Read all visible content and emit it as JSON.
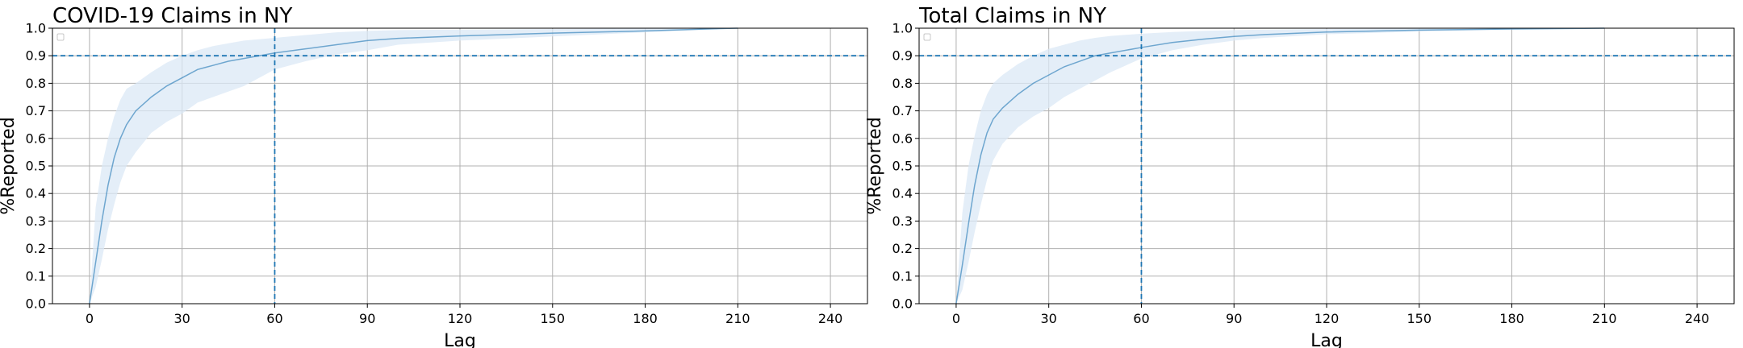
{
  "chart_data": [
    {
      "type": "line",
      "title": "COVID-19 Claims in NY",
      "xlabel": "Lag",
      "ylabel": "%Reported",
      "xlim": [
        -12,
        252
      ],
      "ylim": [
        0,
        1.0
      ],
      "xticks": [
        0,
        30,
        60,
        90,
        120,
        150,
        180,
        210,
        240
      ],
      "yticks": [
        0.0,
        0.1,
        0.2,
        0.3,
        0.4,
        0.5,
        0.6,
        0.7,
        0.8,
        0.9,
        1.0
      ],
      "xtick_labels": [
        "0",
        "30",
        "60",
        "90",
        "120",
        "150",
        "180",
        "210",
        "240"
      ],
      "ytick_labels": [
        "0.0",
        "0.1",
        "0.2",
        "0.3",
        "0.4",
        "0.5",
        "0.6",
        "0.7",
        "0.8",
        "0.9",
        "1.0"
      ],
      "grid": true,
      "legend": "upper-left (empty)",
      "colors": {
        "line": "#1f77b4",
        "band": "#dbe8f5",
        "ref": "#1f77b4",
        "grid": "#b0b0b0"
      },
      "ref_lines": {
        "h": 0.9,
        "v": 60
      },
      "series": [
        {
          "x": [
            0,
            2,
            4,
            6,
            8,
            10,
            12,
            15,
            20,
            25,
            30,
            35,
            40,
            45,
            50,
            60,
            70,
            80,
            90,
            100,
            120,
            150,
            180,
            200,
            210
          ],
          "values": [
            0.0,
            0.15,
            0.3,
            0.43,
            0.53,
            0.6,
            0.65,
            0.7,
            0.75,
            0.79,
            0.82,
            0.85,
            0.865,
            0.88,
            0.89,
            0.91,
            0.925,
            0.94,
            0.955,
            0.963,
            0.972,
            0.982,
            0.99,
            0.997,
            1.0
          ],
          "lower": [
            0.0,
            0.06,
            0.16,
            0.27,
            0.36,
            0.44,
            0.5,
            0.55,
            0.62,
            0.66,
            0.69,
            0.73,
            0.75,
            0.77,
            0.79,
            0.85,
            0.88,
            0.905,
            0.92,
            0.94,
            0.955,
            0.97,
            0.985,
            0.995,
            1.0
          ],
          "upper": [
            0.0,
            0.35,
            0.5,
            0.6,
            0.68,
            0.74,
            0.78,
            0.8,
            0.84,
            0.875,
            0.9,
            0.92,
            0.935,
            0.945,
            0.955,
            0.965,
            0.975,
            0.985,
            0.99,
            0.993,
            0.995,
            0.997,
            0.999,
            1.0,
            1.0
          ]
        }
      ]
    },
    {
      "type": "line",
      "title": "Total Claims in NY",
      "xlabel": "Lag",
      "ylabel": "%Reported",
      "xlim": [
        -12,
        252
      ],
      "ylim": [
        0,
        1.0
      ],
      "xticks": [
        0,
        30,
        60,
        90,
        120,
        150,
        180,
        210,
        240
      ],
      "yticks": [
        0.0,
        0.1,
        0.2,
        0.3,
        0.4,
        0.5,
        0.6,
        0.7,
        0.8,
        0.9,
        1.0
      ],
      "xtick_labels": [
        "0",
        "30",
        "60",
        "90",
        "120",
        "150",
        "180",
        "210",
        "240"
      ],
      "ytick_labels": [
        "0.0",
        "0.1",
        "0.2",
        "0.3",
        "0.4",
        "0.5",
        "0.6",
        "0.7",
        "0.8",
        "0.9",
        "1.0"
      ],
      "grid": true,
      "legend": "upper-left (empty)",
      "colors": {
        "line": "#1f77b4",
        "band": "#dbe8f5",
        "ref": "#1f77b4",
        "grid": "#b0b0b0"
      },
      "ref_lines": {
        "h": 0.9,
        "v": 60
      },
      "series": [
        {
          "x": [
            0,
            2,
            4,
            6,
            8,
            10,
            12,
            15,
            20,
            25,
            30,
            35,
            40,
            45,
            50,
            60,
            70,
            80,
            90,
            100,
            120,
            150,
            180,
            200,
            210
          ],
          "values": [
            0.0,
            0.14,
            0.29,
            0.43,
            0.54,
            0.62,
            0.67,
            0.71,
            0.76,
            0.8,
            0.83,
            0.86,
            0.88,
            0.9,
            0.91,
            0.93,
            0.948,
            0.96,
            0.97,
            0.977,
            0.986,
            0.993,
            0.997,
            0.999,
            1.0
          ],
          "lower": [
            0.0,
            0.05,
            0.15,
            0.26,
            0.36,
            0.45,
            0.52,
            0.58,
            0.64,
            0.68,
            0.71,
            0.75,
            0.78,
            0.81,
            0.84,
            0.89,
            0.92,
            0.94,
            0.955,
            0.965,
            0.978,
            0.988,
            0.995,
            0.998,
            1.0
          ],
          "upper": [
            0.0,
            0.33,
            0.5,
            0.61,
            0.7,
            0.76,
            0.8,
            0.83,
            0.87,
            0.9,
            0.925,
            0.94,
            0.955,
            0.965,
            0.972,
            0.98,
            0.986,
            0.99,
            0.993,
            0.995,
            0.997,
            0.999,
            1.0,
            1.0,
            1.0
          ]
        }
      ]
    }
  ]
}
